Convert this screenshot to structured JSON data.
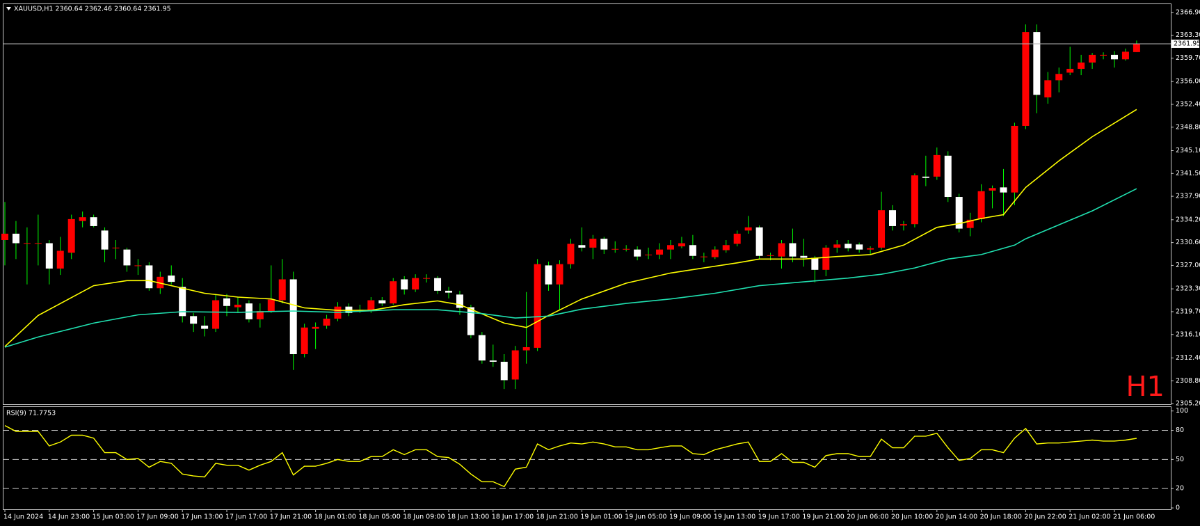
{
  "chart_data": [
    {
      "type": "candlestick",
      "title": "XAUUSD,H1  2360.64 2362.46 2360.64 2361.95",
      "timeframe_label": "H1",
      "categories": [
        "14 Jun 2024",
        null,
        null,
        null,
        "14 Jun 23:00",
        null,
        null,
        null,
        "15 Jun 03:00",
        null,
        null,
        null,
        "17 Jun 09:00",
        null,
        null,
        null,
        "17 Jun 13:00",
        null,
        null,
        null,
        "17 Jun 17:00",
        null,
        null,
        null,
        "17 Jun 21:00",
        null,
        null,
        null,
        "18 Jun 01:00",
        null,
        null,
        null,
        "18 Jun 05:00",
        null,
        null,
        null,
        "18 Jun 09:00",
        null,
        null,
        null,
        "18 Jun 13:00",
        null,
        null,
        null,
        "18 Jun 17:00",
        null,
        null,
        null,
        "18 Jun 21:00",
        null,
        null,
        null,
        "19 Jun 01:00",
        null,
        null,
        null,
        "19 Jun 05:00",
        null,
        null,
        null,
        "19 Jun 09:00",
        null,
        null,
        null,
        "19 Jun 13:00",
        null,
        null,
        null,
        "19 Jun 17:00",
        null,
        null,
        null,
        "19 Jun 21:00",
        null,
        null,
        null,
        "20 Jun 06:00",
        null,
        null,
        null,
        "20 Jun 10:00",
        null,
        null,
        null,
        "20 Jun 14:00",
        null,
        null,
        null,
        "20 Jun 18:00",
        null,
        null,
        null,
        "20 Jun 22:00",
        null,
        null,
        null,
        "21 Jun 02:00",
        null,
        null,
        null,
        "21 Jun 06:00",
        null,
        null
      ],
      "open": [
        2331,
        2332,
        2330.5,
        2330.5,
        2330.5,
        2326.5,
        2329,
        2334,
        2334.6,
        2332.5,
        2329.8,
        2329.5,
        2327,
        2327,
        2323.4,
        2325.4,
        2323.6,
        2319,
        2317.5,
        2317,
        2321.8,
        2320.4,
        2321,
        2318.5,
        2319.8,
        2321.5,
        2324.8,
        2313,
        2317,
        2317.5,
        2318.6,
        2320.5,
        2320,
        2319.8,
        2321.5,
        2321,
        2324.8,
        2323.2,
        2325,
        2325,
        2323,
        2322.4,
        2320.4,
        2316,
        2312,
        2311.8,
        2309,
        2313.6,
        2314,
        2327,
        2324,
        2327.2,
        2330.2,
        2329.8,
        2331.2,
        2329.6,
        2329.6,
        2329.5,
        2328.7,
        2328.7,
        2329.5,
        2330,
        2330.2,
        2328.4,
        2328.3,
        2329.4,
        2330.4,
        2332.5,
        2333,
        2328.6,
        2328.4,
        2330.5,
        2328.5,
        2328.2,
        2326.3,
        2329.8,
        2330.4,
        2330.3,
        2329.5,
        2329.8,
        2335.7,
        2333.3,
        2333.5,
        2341,
        2341,
        2344.3,
        2337.8,
        2332.9,
        2334.3,
        2338.8,
        2339.3,
        2338.5,
        2349,
        2363.8,
        2353.5,
        2356.2,
        2357.4,
        2358,
        2359,
        2360.2,
        2360.2,
        2359.5,
        2360.64
      ],
      "high": [
        2337,
        2334,
        2333,
        2335,
        2331,
        2331.5,
        2335,
        2335.5,
        2335,
        2333,
        2331,
        2329.8,
        2328,
        2327.5,
        2326,
        2327,
        2325,
        2319.5,
        2319,
        2322.5,
        2322.5,
        2322,
        2321.5,
        2321,
        2327,
        2328,
        2326,
        2317.8,
        2318,
        2319.2,
        2321.2,
        2321,
        2320.8,
        2322,
        2322,
        2325,
        2325.3,
        2325.6,
        2325.6,
        2325.3,
        2323.6,
        2323,
        2320.8,
        2316.5,
        2314.5,
        2313,
        2314.3,
        2322.8,
        2328,
        2327.6,
        2327.8,
        2331.2,
        2333,
        2331.8,
        2331.5,
        2330.8,
        2330.2,
        2330,
        2329.8,
        2330.5,
        2331,
        2331.5,
        2331.8,
        2329,
        2330,
        2331,
        2332.5,
        2334.8,
        2333.3,
        2329,
        2331,
        2332.8,
        2331.2,
        2328.5,
        2330.2,
        2331,
        2331,
        2330.6,
        2330,
        2338.6,
        2336.5,
        2334,
        2341.5,
        2344.3,
        2345.6,
        2345,
        2338.3,
        2335.3,
        2339.8,
        2339.6,
        2342.2,
        2349.5,
        2365,
        2365,
        2357.5,
        2358.2,
        2361.5,
        2360.2,
        2360.5,
        2360.6,
        2360.8,
        2361.2,
        2362.46
      ],
      "low": [
        2327,
        2328,
        2324,
        2327,
        2324,
        2325.5,
        2328,
        2333,
        2333,
        2327.5,
        2328,
        2326,
        2325.5,
        2323,
        2322.5,
        2324,
        2318,
        2316.5,
        2315.8,
        2316.5,
        2319,
        2319.5,
        2318,
        2317.2,
        2319.5,
        2321,
        2310.5,
        2312.5,
        2313.8,
        2317,
        2318.2,
        2319,
        2319.5,
        2319.5,
        2320.6,
        2320.8,
        2322.4,
        2322.8,
        2324.3,
        2322.5,
        2321.8,
        2319.2,
        2315.5,
        2311.5,
        2311,
        2307.5,
        2307.5,
        2311.5,
        2313.5,
        2323,
        2320,
        2326.5,
        2329.2,
        2328,
        2328.8,
        2329,
        2329.2,
        2327.8,
        2328,
        2328,
        2328,
        2329.7,
        2328,
        2327.5,
        2328,
        2329,
        2330,
        2332,
        2328,
        2327.8,
        2326.5,
        2327.5,
        2326.8,
        2324.3,
        2325.3,
        2329,
        2329.2,
        2329,
        2328.8,
        2329.5,
        2332.5,
        2332.5,
        2333,
        2339.5,
        2340.5,
        2337,
        2332.2,
        2331.6,
        2333.8,
        2336,
        2334.8,
        2336.5,
        2348.5,
        2351,
        2352.5,
        2354.3,
        2357,
        2357,
        2358,
        2359.5,
        2358.2,
        2359.3,
        2360.64
      ],
      "close": [
        2332,
        2330.5,
        2330.5,
        2330.5,
        2326.5,
        2329.3,
        2334.3,
        2334.6,
        2333.2,
        2329.5,
        2329.8,
        2327,
        2327,
        2323.4,
        2325.2,
        2324.4,
        2319,
        2317.8,
        2317,
        2321.5,
        2320.6,
        2320.8,
        2318.5,
        2319.8,
        2321.6,
        2324.8,
        2313,
        2317.2,
        2317.3,
        2318.6,
        2320.5,
        2319.5,
        2320,
        2321.5,
        2321,
        2324.5,
        2323.2,
        2325,
        2325,
        2323,
        2322.7,
        2320.3,
        2316,
        2312,
        2311.8,
        2308.9,
        2313.6,
        2314.1,
        2327.2,
        2324,
        2327.2,
        2330.4,
        2329.8,
        2331.2,
        2329.5,
        2329.6,
        2329.6,
        2328.4,
        2328.7,
        2329.5,
        2330.2,
        2330.5,
        2328.5,
        2328.4,
        2329.5,
        2330.2,
        2332,
        2333,
        2328.5,
        2328.6,
        2330.5,
        2328.4,
        2328.2,
        2326.3,
        2329.8,
        2330.3,
        2329.7,
        2329.5,
        2329.7,
        2335.7,
        2333.2,
        2333.5,
        2341.2,
        2340.8,
        2344.4,
        2337.8,
        2332.8,
        2334.2,
        2338.7,
        2339.2,
        2338.5,
        2349,
        2363.8,
        2353.9,
        2356.2,
        2357.2,
        2358,
        2359,
        2360.2,
        2360.2,
        2359.5,
        2360.7,
        2361.95
      ],
      "up_color": "#ff0000",
      "down_color": "#ffffff",
      "wick_color": "#00ff00",
      "lines": [
        {
          "color": "#ffff00",
          "x": [
            0,
            3,
            8,
            11,
            13,
            18,
            21,
            24,
            27,
            30,
            33,
            36,
            39,
            41,
            45,
            47,
            49,
            52,
            56,
            60,
            63,
            66,
            68,
            72,
            75,
            78,
            81,
            84,
            86,
            88,
            90,
            92,
            95,
            98,
            102
          ],
          "values": [
            2314.2,
            2319.1,
            2323.8,
            2324.6,
            2324.6,
            2322.6,
            2322.0,
            2321.7,
            2320.3,
            2319.9,
            2319.9,
            2320.8,
            2321.4,
            2320.8,
            2317.9,
            2317.2,
            2319.1,
            2321.7,
            2324.2,
            2325.8,
            2326.6,
            2327.4,
            2328.0,
            2328.0,
            2328.4,
            2328.7,
            2330.2,
            2333.0,
            2333.6,
            2334.4,
            2335.0,
            2339.3,
            2343.5,
            2347.3,
            2351.6
          ]
        },
        {
          "color": "#20e0b0",
          "x": [
            0,
            3,
            8,
            12,
            16,
            21,
            26,
            30,
            35,
            39,
            43,
            46,
            49,
            52,
            56,
            60,
            64,
            68,
            72,
            76,
            79,
            82,
            85,
            88,
            91,
            92,
            95,
            98,
            102
          ],
          "values": [
            2314.1,
            2315.7,
            2317.9,
            2319.2,
            2319.7,
            2319.6,
            2319.8,
            2319.6,
            2320.0,
            2320.0,
            2319.4,
            2318.7,
            2319.0,
            2320.1,
            2321.0,
            2321.7,
            2322.6,
            2323.8,
            2324.4,
            2325.0,
            2325.6,
            2326.6,
            2328.0,
            2328.7,
            2330.2,
            2331.2,
            2333.4,
            2335.6,
            2339.1
          ]
        }
      ],
      "current_price": {
        "value": 2361.95,
        "label": "2361.95"
      },
      "ylim": [
        2305.1,
        2368.2
      ],
      "yticks": [
        {
          "value": 2366.9,
          "label": "2366.90"
        },
        {
          "value": 2363.3,
          "label": "2363.30"
        },
        {
          "value": 2359.7,
          "label": "2359.70"
        },
        {
          "value": 2356,
          "label": "2356.00"
        },
        {
          "value": 2352.4,
          "label": "2352.40"
        },
        {
          "value": 2348.8,
          "label": "2348.80"
        },
        {
          "value": 2345.1,
          "label": "2345.10"
        },
        {
          "value": 2341.5,
          "label": "2341.50"
        },
        {
          "value": 2337.9,
          "label": "2337.90"
        },
        {
          "value": 2334.2,
          "label": "2334.20"
        },
        {
          "value": 2330.6,
          "label": "2330.60"
        },
        {
          "value": 2327,
          "label": "2327.00"
        },
        {
          "value": 2323.3,
          "label": "2323.30"
        },
        {
          "value": 2319.7,
          "label": "2319.70"
        },
        {
          "value": 2316.1,
          "label": "2316.10"
        },
        {
          "value": 2312.4,
          "label": "2312.40"
        },
        {
          "value": 2308.8,
          "label": "2308.80"
        },
        {
          "value": 2305.2,
          "label": "2305.20"
        }
      ],
      "grid": false
    },
    {
      "type": "line",
      "title": "RSI(9) 71.7753",
      "color": "#ffff00",
      "values": [
        85,
        79,
        79,
        79,
        64,
        68,
        75,
        75,
        72,
        57,
        57,
        50,
        51,
        42,
        48,
        46,
        35,
        33,
        32,
        46,
        44,
        44,
        39,
        44,
        48,
        57,
        34,
        43,
        43,
        46,
        50,
        48,
        48,
        53,
        53,
        60,
        55,
        60,
        60,
        53,
        52,
        45,
        35,
        27,
        27,
        22,
        40,
        42,
        66,
        60,
        64,
        67,
        66,
        68,
        66,
        63,
        63,
        60,
        60,
        62,
        64,
        64,
        56,
        55,
        60,
        63,
        66,
        68,
        48,
        48,
        56,
        47,
        47,
        42,
        54,
        56,
        56,
        53,
        53,
        71,
        62,
        62,
        74,
        74,
        77,
        62,
        49,
        51,
        60,
        60,
        57,
        72,
        82,
        66,
        67,
        67,
        68,
        69,
        70,
        69,
        69,
        70,
        71.7753
      ],
      "ylim": [
        -1.4,
        104.8
      ],
      "yticks": [
        100,
        80,
        50,
        20,
        0
      ]
    }
  ]
}
